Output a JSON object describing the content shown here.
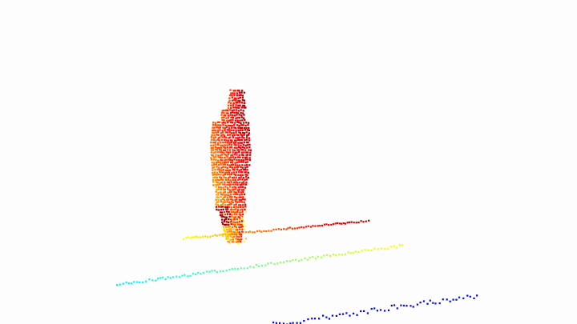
{
  "scene": {
    "description_kind": "lidar-point-cloud",
    "background_color": "#fcfdfc",
    "colormap": "jet",
    "colors": {
      "far_blue": "#1a2bd6",
      "cyan": "#1fc6e0",
      "green": "#6cf07a",
      "yellow_green": "#c6f03a",
      "yellow": "#f5e21c",
      "orange": "#f59a1a",
      "red": "#e0320f"
    }
  }
}
